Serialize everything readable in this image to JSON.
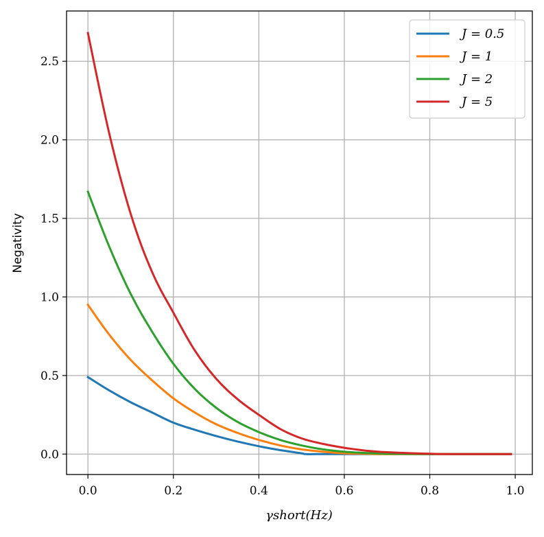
{
  "chart_data": {
    "type": "line",
    "xlabel": "γshort(Hz)",
    "ylabel": "Negativity",
    "xlim": [
      -0.05,
      1.04
    ],
    "ylim": [
      -0.13,
      2.82
    ],
    "xticks": [
      0.0,
      0.2,
      0.4,
      0.6,
      0.8,
      1.0
    ],
    "xtick_labels": [
      "0.0",
      "0.2",
      "0.4",
      "0.6",
      "0.8",
      "1.0"
    ],
    "yticks": [
      0.0,
      0.5,
      1.0,
      1.5,
      2.0,
      2.5
    ],
    "ytick_labels": [
      "0.0",
      "0.5",
      "1.0",
      "1.5",
      "2.0",
      "2.5"
    ],
    "grid": true,
    "legend_position": "top-right",
    "series": [
      {
        "name": "J = 0.5",
        "color": "#1f77b4",
        "x": [
          0.0,
          0.05,
          0.1,
          0.15,
          0.2,
          0.25,
          0.3,
          0.35,
          0.4,
          0.45,
          0.5,
          0.51,
          0.55,
          0.6,
          0.7,
          0.8,
          0.9,
          0.99
        ],
        "y": [
          0.49,
          0.405,
          0.33,
          0.265,
          0.2,
          0.155,
          0.115,
          0.08,
          0.05,
          0.025,
          0.005,
          0.0,
          0.0,
          0.0,
          0.0,
          0.0,
          0.0,
          0.0
        ]
      },
      {
        "name": "J = 1",
        "color": "#ff7f0e",
        "x": [
          0.0,
          0.05,
          0.1,
          0.15,
          0.2,
          0.25,
          0.3,
          0.35,
          0.4,
          0.45,
          0.5,
          0.55,
          0.6,
          0.65,
          0.7,
          0.8,
          0.9,
          0.99
        ],
        "y": [
          0.95,
          0.76,
          0.6,
          0.47,
          0.355,
          0.265,
          0.19,
          0.135,
          0.09,
          0.055,
          0.03,
          0.015,
          0.005,
          0.002,
          0.0,
          0.0,
          0.0,
          0.0
        ]
      },
      {
        "name": "J = 2",
        "color": "#2ca02c",
        "x": [
          0.0,
          0.05,
          0.1,
          0.15,
          0.2,
          0.25,
          0.3,
          0.35,
          0.4,
          0.45,
          0.5,
          0.55,
          0.6,
          0.65,
          0.7,
          0.8,
          0.9,
          0.99
        ],
        "y": [
          1.67,
          1.32,
          1.02,
          0.78,
          0.575,
          0.415,
          0.295,
          0.205,
          0.14,
          0.09,
          0.055,
          0.03,
          0.015,
          0.007,
          0.003,
          0.0,
          0.0,
          0.0
        ]
      },
      {
        "name": "J = 5",
        "color": "#d62728",
        "x": [
          0.0,
          0.05,
          0.1,
          0.15,
          0.2,
          0.25,
          0.3,
          0.35,
          0.4,
          0.45,
          0.5,
          0.55,
          0.6,
          0.65,
          0.7,
          0.8,
          0.9,
          0.99
        ],
        "y": [
          2.68,
          2.04,
          1.53,
          1.16,
          0.9,
          0.66,
          0.48,
          0.35,
          0.25,
          0.16,
          0.1,
          0.065,
          0.04,
          0.022,
          0.012,
          0.002,
          0.0,
          0.0
        ]
      }
    ]
  }
}
